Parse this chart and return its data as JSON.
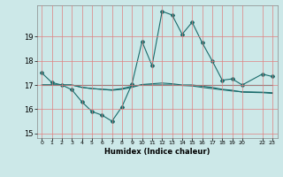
{
  "xlabel": "Humidex (Indice chaleur)",
  "ylabel": "",
  "background_color": "#cce8e8",
  "grid_color": "#e08080",
  "line_color": "#1a6b6b",
  "ylim": [
    14.8,
    20.3
  ],
  "yticks": [
    15,
    16,
    17,
    18,
    19
  ],
  "x_values": [
    0,
    1,
    2,
    3,
    4,
    5,
    6,
    7,
    8,
    9,
    10,
    11,
    12,
    13,
    14,
    15,
    16,
    17,
    18,
    19,
    20,
    22,
    23
  ],
  "xtick_labels": [
    "0",
    "1",
    "2",
    "3",
    "4",
    "5",
    "6",
    "7",
    "8",
    "9",
    "10",
    "11",
    "12",
    "13",
    "14",
    "15",
    "16",
    "17",
    "18",
    "19",
    "20",
    "22",
    "23"
  ],
  "series": [
    [
      17.5,
      17.1,
      17.0,
      16.8,
      16.3,
      15.9,
      15.75,
      15.5,
      16.1,
      17.05,
      18.8,
      17.8,
      20.05,
      19.9,
      19.1,
      19.6,
      18.75,
      18.0,
      17.2,
      17.25,
      17.0,
      17.45,
      17.35
    ],
    [
      17.0,
      17.0,
      17.0,
      17.0,
      17.0,
      17.0,
      17.0,
      17.0,
      17.0,
      17.0,
      17.0,
      17.0,
      17.0,
      17.0,
      17.0,
      17.0,
      17.0,
      17.0,
      17.0,
      17.0,
      17.0,
      17.0,
      17.0
    ],
    [
      17.0,
      17.0,
      17.0,
      17.0,
      16.9,
      16.85,
      16.82,
      16.8,
      16.85,
      16.95,
      17.0,
      17.0,
      17.0,
      17.0,
      16.98,
      16.96,
      16.9,
      16.85,
      16.8,
      16.75,
      16.72,
      16.7,
      16.68
    ],
    [
      17.0,
      17.0,
      17.0,
      17.0,
      16.9,
      16.85,
      16.82,
      16.78,
      16.82,
      16.9,
      17.02,
      17.05,
      17.08,
      17.05,
      17.0,
      17.0,
      16.95,
      16.9,
      16.82,
      16.78,
      16.7,
      16.68,
      16.65
    ]
  ],
  "has_markers": [
    true,
    false,
    false,
    false
  ],
  "figsize": [
    3.2,
    2.0
  ],
  "dpi": 100
}
